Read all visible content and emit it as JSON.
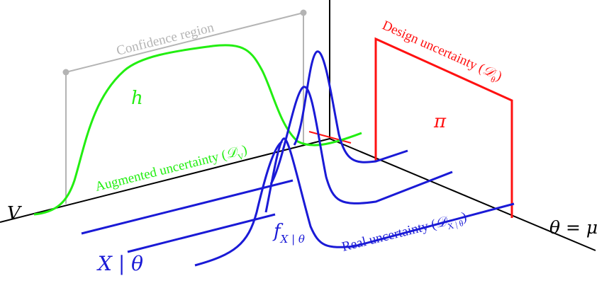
{
  "labels": {
    "confidence_region": "Confidence region",
    "h": "h",
    "augmented_uncertainty": "Augmented uncertainty (",
    "augmented_symbol": "𝒟",
    "augmented_subscript": "V",
    "augmented_close": ")",
    "design_uncertainty": "Design uncertainty (",
    "design_symbol": "𝒟",
    "design_subscript": "θ",
    "design_close": ")",
    "pi": "π",
    "v_axis": "V",
    "theta_axis": "θ = μ",
    "x_given_theta": "X | θ",
    "f": "f",
    "f_subscript": "X | θ",
    "real_uncertainty": "Real uncertainty (",
    "real_symbol": "𝒟",
    "real_subscript": "X | θ",
    "real_close": ")"
  },
  "colors": {
    "axes": "#000000",
    "confidence": "#b4b4b4",
    "augmented": "#22ee11",
    "design": "#ff1111",
    "real": "#1a1ad6"
  }
}
